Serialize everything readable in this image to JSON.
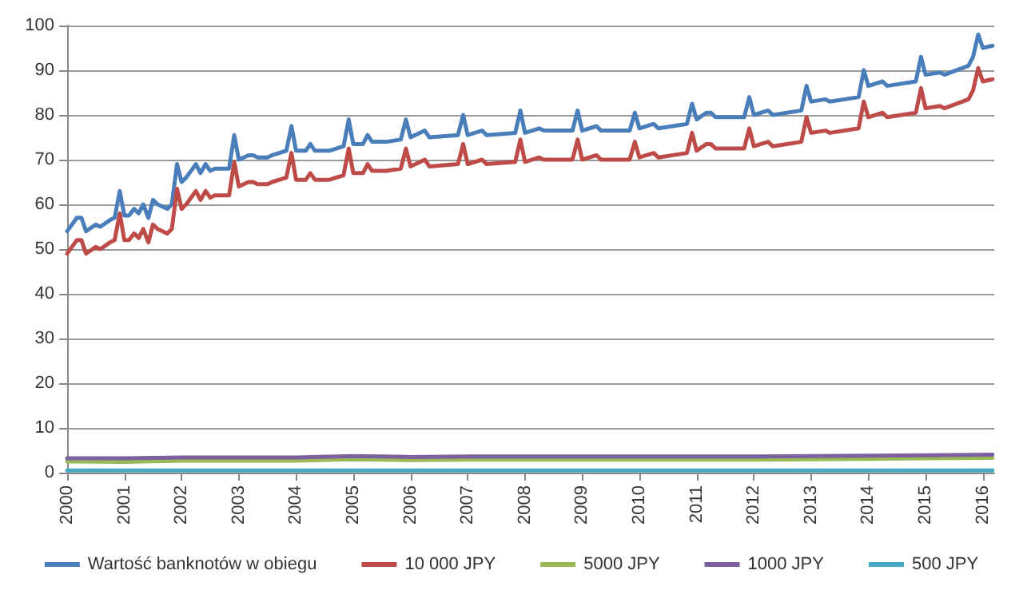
{
  "chart_data": {
    "type": "line",
    "x": [
      2000,
      2000.17,
      2000.25,
      2000.33,
      2000.5,
      2000.58,
      2000.75,
      2000.83,
      2000.92,
      2001,
      2001.08,
      2001.17,
      2001.25,
      2001.33,
      2001.42,
      2001.5,
      2001.58,
      2001.75,
      2001.83,
      2001.92,
      2002,
      2002.08,
      2002.25,
      2002.33,
      2002.42,
      2002.5,
      2002.58,
      2002.83,
      2002.92,
      2003,
      2003.17,
      2003.25,
      2003.33,
      2003.5,
      2003.58,
      2003.83,
      2003.92,
      2004,
      2004.17,
      2004.25,
      2004.33,
      2004.58,
      2004.83,
      2004.92,
      2005,
      2005.17,
      2005.25,
      2005.33,
      2005.58,
      2005.83,
      2005.92,
      2006,
      2006.25,
      2006.33,
      2006.83,
      2006.92,
      2007,
      2007.25,
      2007.33,
      2007.83,
      2007.92,
      2008,
      2008.25,
      2008.33,
      2008.83,
      2008.92,
      2009,
      2009.25,
      2009.33,
      2009.83,
      2009.92,
      2010,
      2010.25,
      2010.33,
      2010.83,
      2010.92,
      2011,
      2011.17,
      2011.25,
      2011.33,
      2011.83,
      2011.92,
      2012,
      2012.25,
      2012.33,
      2012.83,
      2012.92,
      2013,
      2013.25,
      2013.33,
      2013.83,
      2013.92,
      2014,
      2014.25,
      2014.33,
      2014.83,
      2014.92,
      2015,
      2015.25,
      2015.33,
      2015.75,
      2015.83,
      2015.92,
      2016,
      2016.17
    ],
    "series": [
      {
        "name": "Wartość banknotów w obiegu",
        "color": "#4a7ebb",
        "values": [
          54,
          57,
          57,
          54,
          55.5,
          55,
          56.5,
          57,
          63,
          57.5,
          57.5,
          59,
          58,
          60,
          57,
          61,
          60,
          59,
          60,
          69,
          65,
          66,
          69,
          67,
          69,
          67.5,
          68,
          68,
          75.5,
          70,
          71,
          71,
          70.5,
          70.5,
          71,
          72,
          77.5,
          72,
          72,
          73.5,
          72,
          72,
          73,
          79,
          73.5,
          73.5,
          75.5,
          74,
          74,
          74.5,
          79,
          75,
          76.5,
          75,
          75.5,
          80,
          75.5,
          76.5,
          75.5,
          76,
          81,
          76,
          77,
          76.5,
          76.5,
          81,
          76.5,
          77.5,
          76.5,
          76.5,
          80.5,
          77,
          78,
          77,
          78,
          82.5,
          79,
          80.5,
          80.5,
          79.5,
          79.5,
          84,
          80,
          81,
          80,
          81,
          86.5,
          83,
          83.5,
          83,
          84,
          90,
          86.5,
          87.5,
          86.5,
          87.5,
          93,
          89,
          89.5,
          89,
          91,
          93,
          98,
          95,
          95.5
        ]
      },
      {
        "name": "10 000 JPY",
        "color": "#be4b48",
        "values": [
          49,
          52,
          52,
          49,
          50.5,
          50,
          51.5,
          52,
          58,
          52,
          52,
          53.5,
          52.5,
          54.5,
          51.5,
          55.5,
          54.5,
          53.5,
          54.5,
          63.5,
          59,
          60,
          63,
          61,
          63,
          61.5,
          62,
          62,
          69.5,
          64,
          65,
          65,
          64.5,
          64.5,
          65,
          66,
          71.5,
          65.5,
          65.5,
          67,
          65.5,
          65.5,
          66.5,
          72.5,
          67,
          67,
          69,
          67.5,
          67.5,
          68,
          72.5,
          68.5,
          70,
          68.5,
          69,
          73.5,
          69,
          70,
          69,
          69.5,
          74.5,
          69.5,
          70.5,
          70,
          70,
          74.5,
          70,
          71,
          70,
          70,
          74,
          70.5,
          71.5,
          70.5,
          71.5,
          76,
          72,
          73.5,
          73.5,
          72.5,
          72.5,
          77,
          73,
          74,
          73,
          74,
          79.5,
          76,
          76.5,
          76,
          77,
          83,
          79.5,
          80.5,
          79.5,
          80.5,
          86,
          81.5,
          82,
          81.5,
          83.5,
          85.5,
          90.5,
          87.5,
          88
        ]
      },
      {
        "name": "5000 JPY",
        "color": "#98b954",
        "x": [
          2000,
          2001,
          2002,
          2003,
          2004,
          2005,
          2006,
          2007,
          2008,
          2009,
          2010,
          2011,
          2012,
          2013,
          2014,
          2015,
          2016.17
        ],
        "values": [
          2.5,
          2.4,
          2.7,
          2.7,
          2.7,
          3,
          2.8,
          2.9,
          2.9,
          2.9,
          2.9,
          2.9,
          2.9,
          3,
          3.1,
          3.2,
          3.3
        ]
      },
      {
        "name": "1000 JPY",
        "color": "#7d60a0",
        "x": [
          2000,
          2001,
          2002,
          2003,
          2004,
          2005,
          2006,
          2007,
          2008,
          2009,
          2010,
          2011,
          2012,
          2013,
          2014,
          2015,
          2016.17
        ],
        "values": [
          3.2,
          3.2,
          3.4,
          3.4,
          3.4,
          3.7,
          3.5,
          3.6,
          3.6,
          3.6,
          3.6,
          3.6,
          3.6,
          3.7,
          3.8,
          3.9,
          4
        ]
      },
      {
        "name": "500 JPY",
        "color": "#46aac5",
        "x": [
          2000,
          2016.17
        ],
        "values": [
          0.5,
          0.5
        ]
      }
    ],
    "xlim": [
      2000,
      2016.2
    ],
    "xticks": [
      2000,
      2001,
      2002,
      2003,
      2004,
      2005,
      2006,
      2007,
      2008,
      2009,
      2010,
      2011,
      2012,
      2013,
      2014,
      2015,
      2016
    ],
    "ylim": [
      0,
      100
    ],
    "yticks": [
      0,
      10,
      20,
      30,
      40,
      50,
      60,
      70,
      80,
      90,
      100
    ],
    "grid": "y",
    "legend": "bottom",
    "marker": "none",
    "line_style": "solid"
  }
}
